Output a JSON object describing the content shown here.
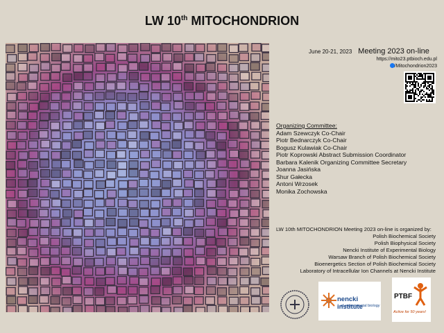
{
  "header": {
    "title_a": "LW 10",
    "title_sup": "th",
    "title_b": "MITOCHONDRION",
    "date": "June 20-21, 2023",
    "meeting": "Meeting 2023 on-line",
    "url": "https://mito23.ptbioch.edu.pl",
    "facebook": "/Mitochondrion2023"
  },
  "committee": {
    "heading": "Organizing Committee:",
    "members": [
      "Adam Szewczyk Co-Chair",
      "Piotr Bednarczyk Co-Chair",
      "Bogusz Kulawiak Co-Chair",
      "Piotr Koprowski Abstract Submission Coordinator",
      "Barbara Kalenik Organizing Committee Secretary",
      "Joanna Jasińska",
      "Shur Gałecka",
      "Antoni Wrzosek",
      "Monika Zochowska"
    ]
  },
  "organizers": {
    "heading": "LW 10th MITOCHONDRION Meeting 2023 on-line is organized by:",
    "list": [
      "Polish Biochemical Society",
      "Polish Biophysical Society",
      "Nencki Institute of Experimental Biology",
      "Warsaw Branch of Polish Biochemical Society",
      "Bioenergetics Section of Polish Biochemical Society",
      "Laboratory of Intracellular Ion Channels at Nencki Institute"
    ]
  },
  "logos": {
    "nencki_a": "nencki institute",
    "nencki_b": "of experimental biology",
    "ptbf": "PTBF",
    "ptbf_tag": "Active for 50 years!"
  }
}
